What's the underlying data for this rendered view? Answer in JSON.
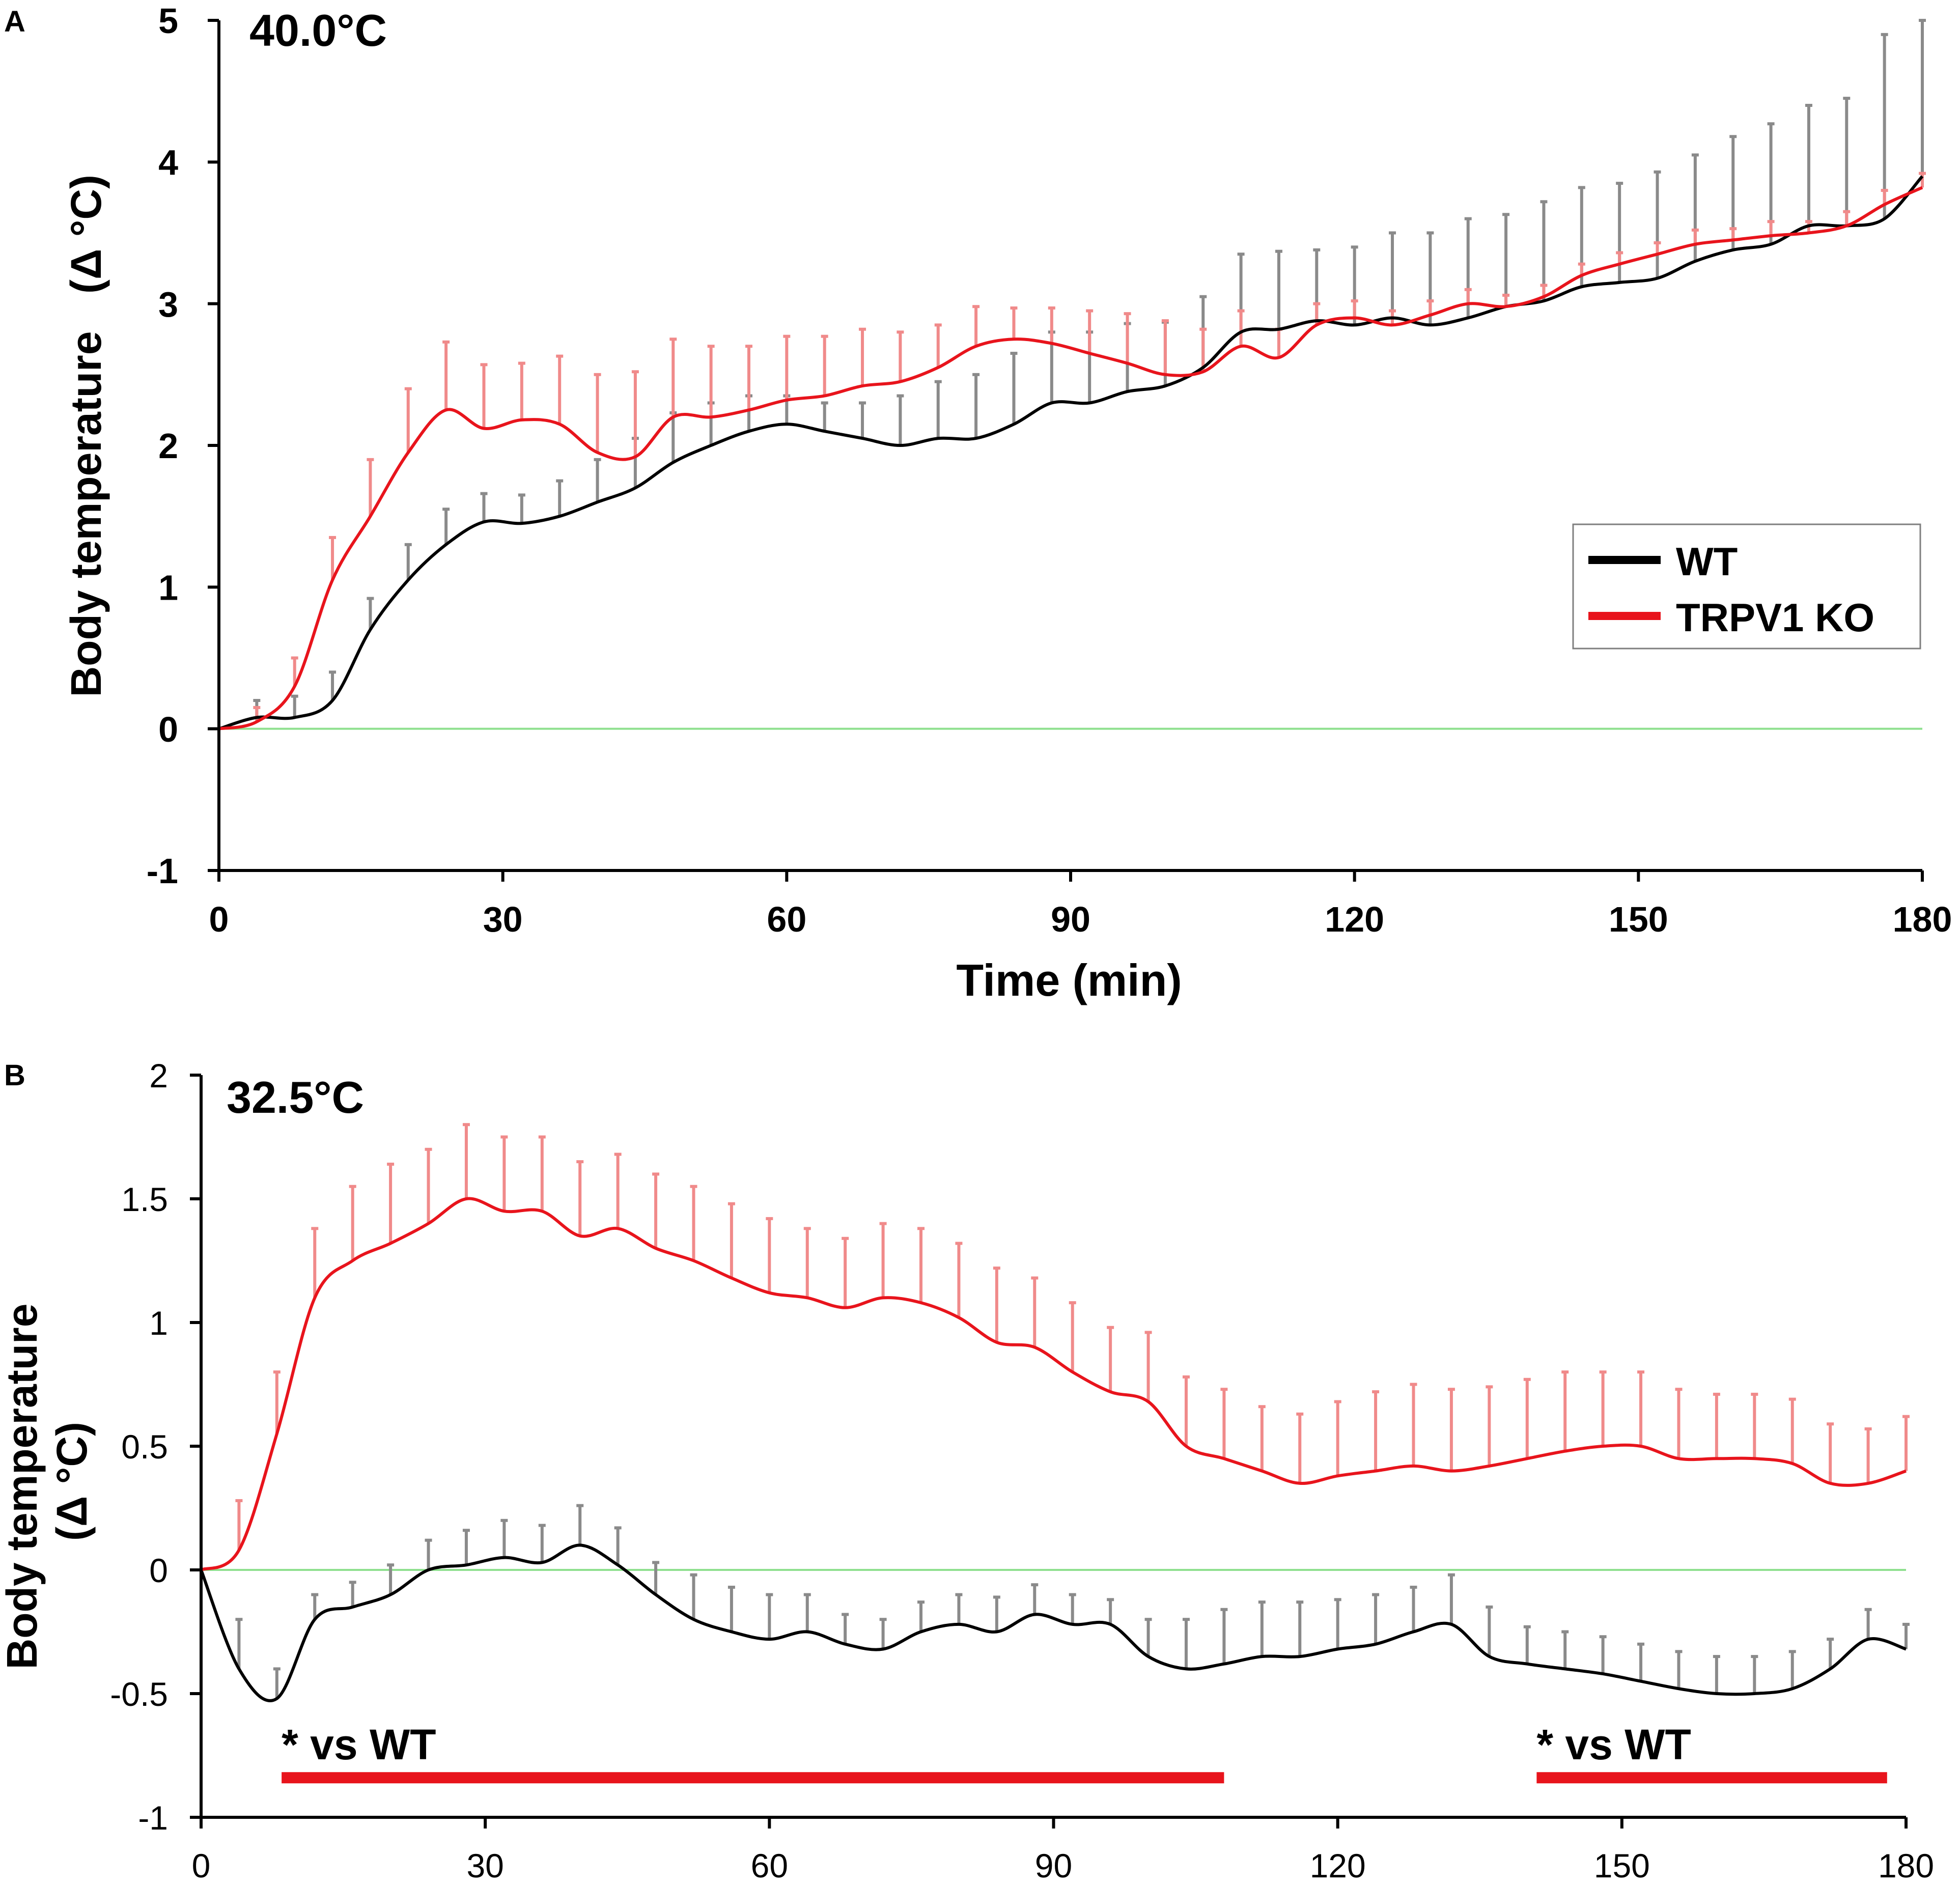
{
  "colors": {
    "wt": "#000000",
    "ko": "#e8141c",
    "wt_err": "#8a8a8a",
    "ko_err": "#f08a8a",
    "baseline": "#8fe08f",
    "sig_bar": "#e8141c"
  },
  "chart_data": [
    {
      "type": "line",
      "panel_label": "A",
      "condition_label": "40.0°C",
      "xlabel": "Time (min)",
      "ylabel": "Body temperature",
      "ylabel_unit": "(Δ °C)",
      "xlim": [
        0,
        180
      ],
      "ylim": [
        -1,
        5
      ],
      "xticks": [
        0,
        30,
        60,
        90,
        120,
        150,
        180
      ],
      "yticks": [
        -1,
        0,
        1,
        2,
        3,
        4,
        5
      ],
      "legend": {
        "position": "right",
        "entries": [
          "WT",
          "TRPV1 KO"
        ]
      },
      "x": [
        0,
        4,
        8,
        12,
        16,
        20,
        24,
        28,
        32,
        36,
        40,
        44,
        48,
        52,
        56,
        60,
        64,
        68,
        72,
        76,
        80,
        84,
        88,
        92,
        96,
        100,
        104,
        108,
        112,
        116,
        120,
        124,
        128,
        132,
        136,
        140,
        144,
        148,
        152,
        156,
        160,
        164,
        168,
        172,
        176,
        180
      ],
      "series": [
        {
          "name": "WT",
          "values": [
            0,
            0.08,
            0.08,
            0.2,
            0.7,
            1.05,
            1.3,
            1.46,
            1.45,
            1.5,
            1.6,
            1.7,
            1.88,
            2.0,
            2.1,
            2.15,
            2.1,
            2.05,
            2.0,
            2.05,
            2.05,
            2.15,
            2.3,
            2.3,
            2.38,
            2.42,
            2.55,
            2.8,
            2.82,
            2.88,
            2.85,
            2.9,
            2.85,
            2.9,
            2.98,
            3.02,
            3.12,
            3.15,
            3.18,
            3.3,
            3.38,
            3.42,
            3.55,
            3.55,
            3.6,
            3.9
          ],
          "errors": [
            0,
            0.12,
            0.15,
            0.2,
            0.22,
            0.25,
            0.25,
            0.2,
            0.2,
            0.25,
            0.3,
            0.35,
            0.35,
            0.3,
            0.25,
            0.2,
            0.2,
            0.25,
            0.35,
            0.4,
            0.45,
            0.5,
            0.5,
            0.5,
            0.48,
            0.45,
            0.5,
            0.55,
            0.55,
            0.5,
            0.55,
            0.6,
            0.65,
            0.7,
            0.65,
            0.7,
            0.7,
            0.7,
            0.75,
            0.75,
            0.8,
            0.85,
            0.85,
            0.9,
            1.3,
            1.1
          ]
        },
        {
          "name": "TRPV1 KO",
          "values": [
            0,
            0.05,
            0.3,
            1.05,
            1.5,
            1.95,
            2.25,
            2.12,
            2.18,
            2.15,
            1.95,
            1.92,
            2.2,
            2.2,
            2.25,
            2.32,
            2.35,
            2.42,
            2.45,
            2.55,
            2.7,
            2.75,
            2.72,
            2.65,
            2.58,
            2.5,
            2.52,
            2.7,
            2.62,
            2.85,
            2.9,
            2.85,
            2.92,
            3.0,
            2.98,
            3.05,
            3.2,
            3.28,
            3.35,
            3.42,
            3.45,
            3.48,
            3.5,
            3.55,
            3.7,
            3.82
          ],
          "errors": [
            0,
            0.1,
            0.2,
            0.3,
            0.4,
            0.45,
            0.48,
            0.45,
            0.4,
            0.48,
            0.55,
            0.6,
            0.55,
            0.5,
            0.45,
            0.45,
            0.42,
            0.4,
            0.35,
            0.3,
            0.28,
            0.22,
            0.25,
            0.3,
            0.35,
            0.38,
            0.3,
            0.25,
            0.2,
            0.15,
            0.12,
            0.1,
            0.1,
            0.1,
            0.08,
            0.08,
            0.08,
            0.08,
            0.08,
            0.1,
            0.08,
            0.1,
            0.08,
            0.1,
            0.1,
            0.1
          ]
        }
      ]
    },
    {
      "type": "line",
      "panel_label": "B",
      "condition_label": "32.5°C",
      "xlabel": "",
      "ylabel": "Body temperature",
      "ylabel_unit": "(Δ °C)",
      "xlim": [
        0,
        180
      ],
      "ylim": [
        -1,
        2
      ],
      "xticks": [
        0,
        30,
        60,
        90,
        120,
        150,
        180
      ],
      "yticks": [
        -1,
        -0.5,
        0,
        0.5,
        1,
        1.5,
        2
      ],
      "ytick_labels": [
        "-1",
        "-0.5",
        "0",
        "0.5",
        "1",
        "1.5",
        "2"
      ],
      "x": [
        0,
        4,
        8,
        12,
        16,
        20,
        24,
        28,
        32,
        36,
        40,
        44,
        48,
        52,
        56,
        60,
        64,
        68,
        72,
        76,
        80,
        84,
        88,
        92,
        96,
        100,
        104,
        108,
        112,
        116,
        120,
        124,
        128,
        132,
        136,
        140,
        144,
        148,
        152,
        156,
        160,
        164,
        168,
        172,
        176,
        180
      ],
      "series": [
        {
          "name": "WT",
          "values": [
            0,
            -0.4,
            -0.52,
            -0.2,
            -0.15,
            -0.1,
            0,
            0.02,
            0.05,
            0.03,
            0.1,
            0.02,
            -0.1,
            -0.2,
            -0.25,
            -0.28,
            -0.25,
            -0.3,
            -0.32,
            -0.25,
            -0.22,
            -0.25,
            -0.18,
            -0.22,
            -0.22,
            -0.35,
            -0.4,
            -0.38,
            -0.35,
            -0.35,
            -0.32,
            -0.3,
            -0.25,
            -0.22,
            -0.35,
            -0.38,
            -0.4,
            -0.42,
            -0.45,
            -0.48,
            -0.5,
            -0.5,
            -0.48,
            -0.4,
            -0.28,
            -0.32
          ],
          "errors": [
            0,
            0.2,
            0.12,
            0.1,
            0.1,
            0.12,
            0.12,
            0.14,
            0.15,
            0.15,
            0.16,
            0.15,
            0.13,
            0.18,
            0.18,
            0.18,
            0.15,
            0.12,
            0.12,
            0.12,
            0.12,
            0.14,
            0.12,
            0.12,
            0.1,
            0.15,
            0.2,
            0.22,
            0.22,
            0.22,
            0.2,
            0.2,
            0.18,
            0.2,
            0.2,
            0.15,
            0.15,
            0.15,
            0.15,
            0.15,
            0.15,
            0.15,
            0.15,
            0.12,
            0.12,
            0.1
          ]
        },
        {
          "name": "TRPV1 KO",
          "values": [
            0,
            0.08,
            0.55,
            1.1,
            1.25,
            1.32,
            1.4,
            1.5,
            1.45,
            1.45,
            1.35,
            1.38,
            1.3,
            1.25,
            1.18,
            1.12,
            1.1,
            1.06,
            1.1,
            1.08,
            1.02,
            0.92,
            0.9,
            0.8,
            0.72,
            0.68,
            0.5,
            0.45,
            0.4,
            0.35,
            0.38,
            0.4,
            0.42,
            0.4,
            0.42,
            0.45,
            0.48,
            0.5,
            0.5,
            0.45,
            0.45,
            0.45,
            0.43,
            0.35,
            0.35,
            0.4
          ],
          "errors": [
            0,
            0.2,
            0.25,
            0.28,
            0.3,
            0.32,
            0.3,
            0.3,
            0.3,
            0.3,
            0.3,
            0.3,
            0.3,
            0.3,
            0.3,
            0.3,
            0.28,
            0.28,
            0.3,
            0.3,
            0.3,
            0.3,
            0.28,
            0.28,
            0.26,
            0.28,
            0.28,
            0.28,
            0.26,
            0.28,
            0.3,
            0.32,
            0.33,
            0.33,
            0.32,
            0.32,
            0.32,
            0.3,
            0.3,
            0.28,
            0.26,
            0.26,
            0.26,
            0.24,
            0.22,
            0.22
          ]
        }
      ],
      "annotations": [
        {
          "text": "* vs WT",
          "x_start": 8.5,
          "x_end": 108
        },
        {
          "text": "* vs WT",
          "x_start": 141,
          "x_end": 178
        }
      ]
    }
  ]
}
